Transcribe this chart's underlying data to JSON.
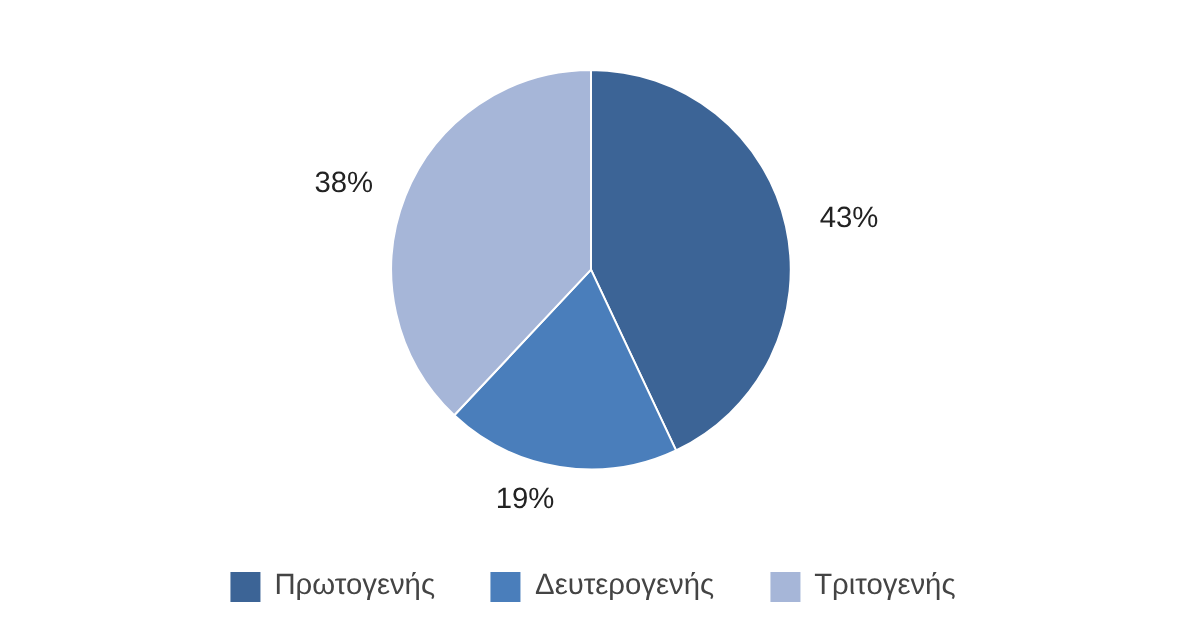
{
  "chart_data": {
    "type": "pie",
    "categories": [
      "Πρωτογενής",
      "Δευτερογενής",
      "Τριτογενής"
    ],
    "values": [
      43,
      19,
      38
    ],
    "colors": [
      "#3c6496",
      "#4a7ebb",
      "#a6b6d8"
    ],
    "value_labels": [
      "43%",
      "19%",
      "38%"
    ],
    "legend": "bottom"
  }
}
